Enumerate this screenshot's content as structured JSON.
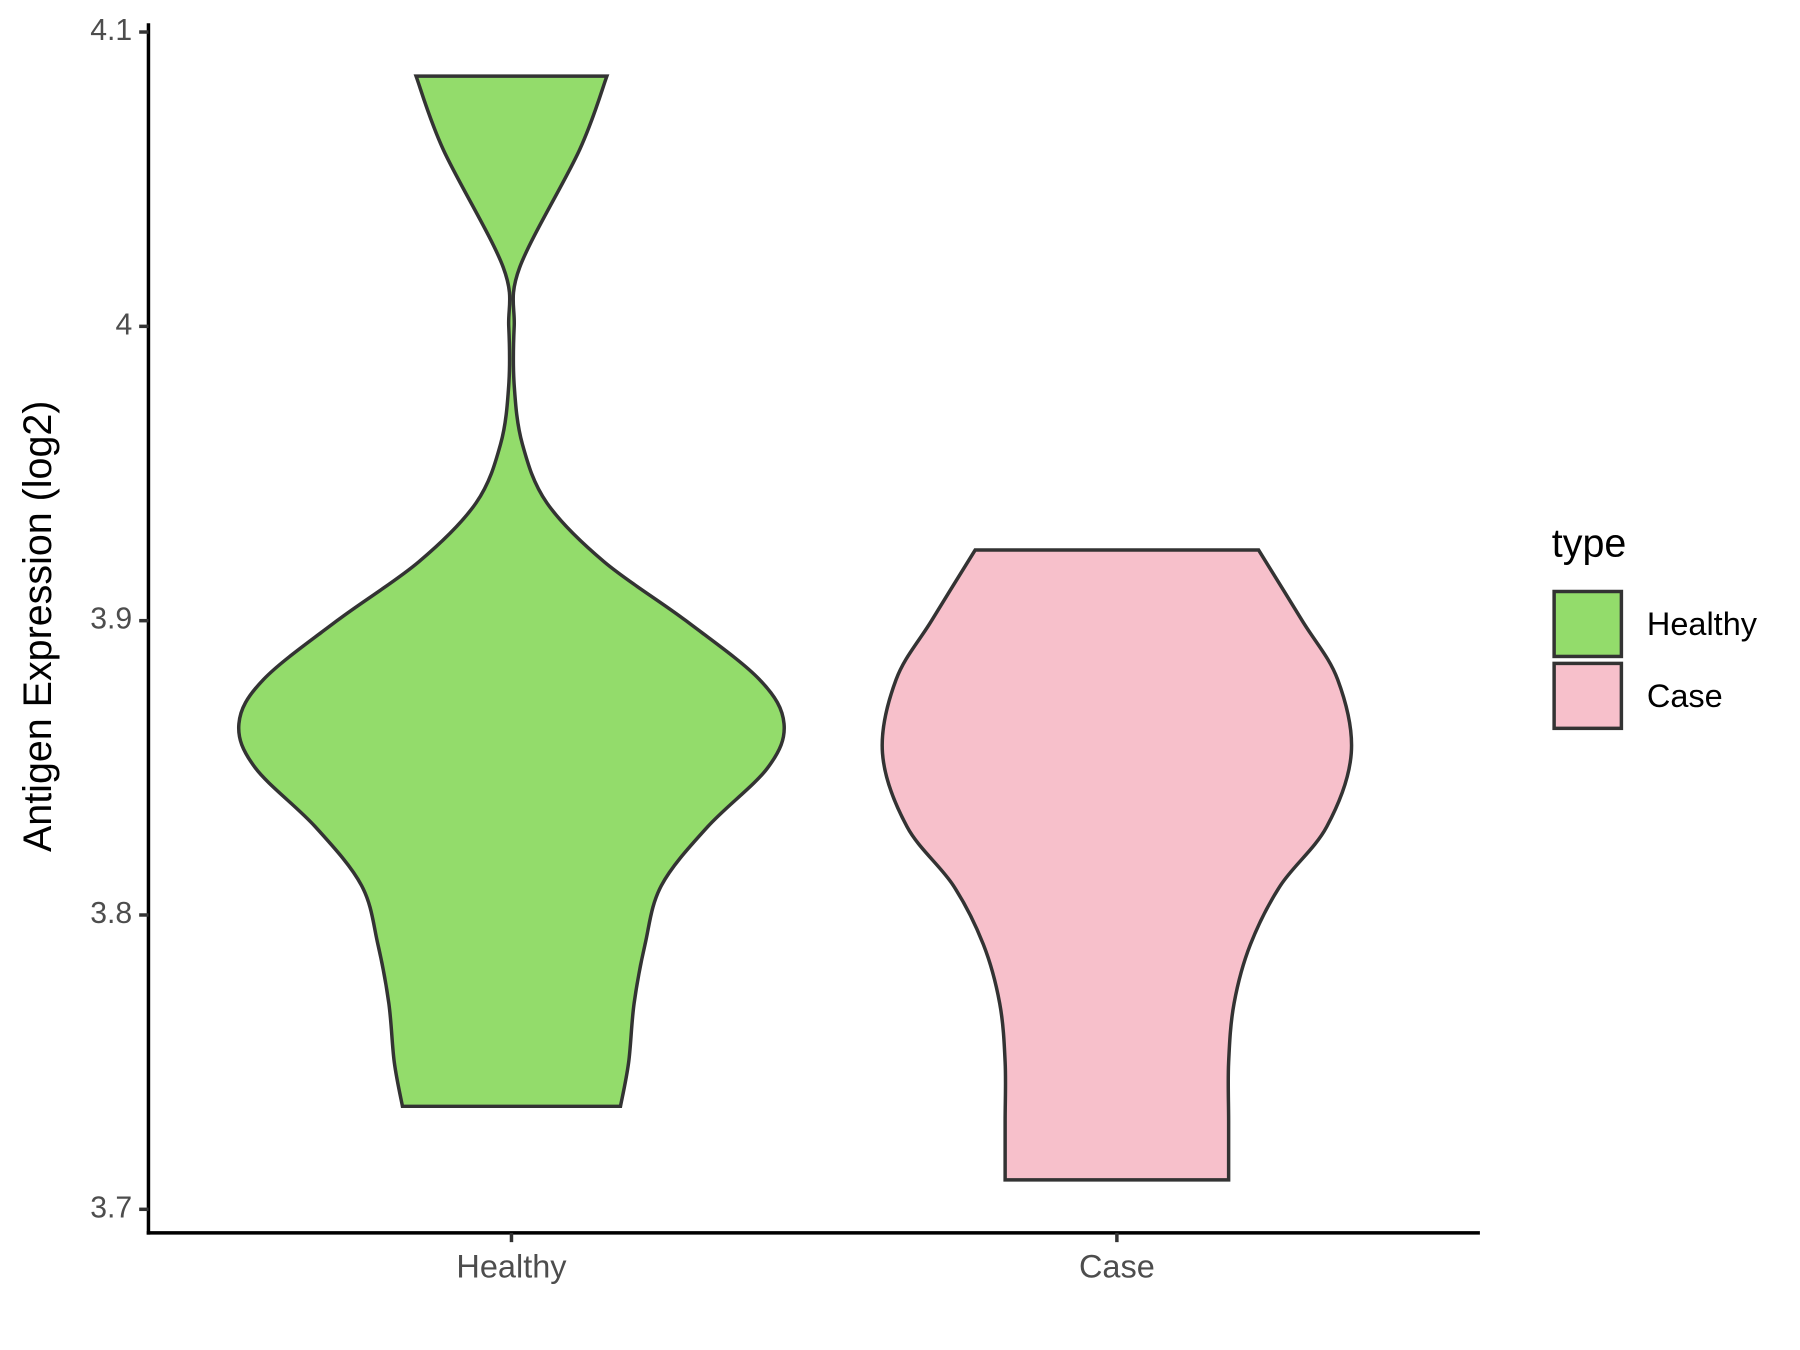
{
  "chart_data": {
    "type": "violin",
    "ylabel": "Antigen Expression (log2)",
    "legend_title": "type",
    "categories": [
      "Healthy",
      "Case"
    ],
    "ylim": [
      3.692,
      4.103
    ],
    "yticks": [
      3.7,
      3.8,
      3.9,
      4.0,
      4.1
    ],
    "series": [
      {
        "name": "Healthy",
        "color": "#93dc6b",
        "y": [
          4.085,
          4.06,
          4.02,
          4.0,
          3.98,
          3.96,
          3.94,
          3.92,
          3.9,
          3.88,
          3.865,
          3.85,
          3.83,
          3.81,
          3.79,
          3.77,
          3.75,
          3.735
        ],
        "density": [
          0.35,
          0.25,
          0.03,
          0.01,
          0.01,
          0.04,
          0.13,
          0.34,
          0.64,
          0.91,
          1.0,
          0.94,
          0.72,
          0.55,
          0.49,
          0.45,
          0.43,
          0.4
        ]
      },
      {
        "name": "Case",
        "color": "#f7c0cb",
        "y": [
          3.924,
          3.9,
          3.88,
          3.855,
          3.83,
          3.81,
          3.79,
          3.77,
          3.75,
          3.73,
          3.71
        ],
        "density": [
          0.52,
          0.68,
          0.81,
          0.86,
          0.77,
          0.6,
          0.49,
          0.43,
          0.41,
          0.41,
          0.41
        ]
      }
    ]
  }
}
